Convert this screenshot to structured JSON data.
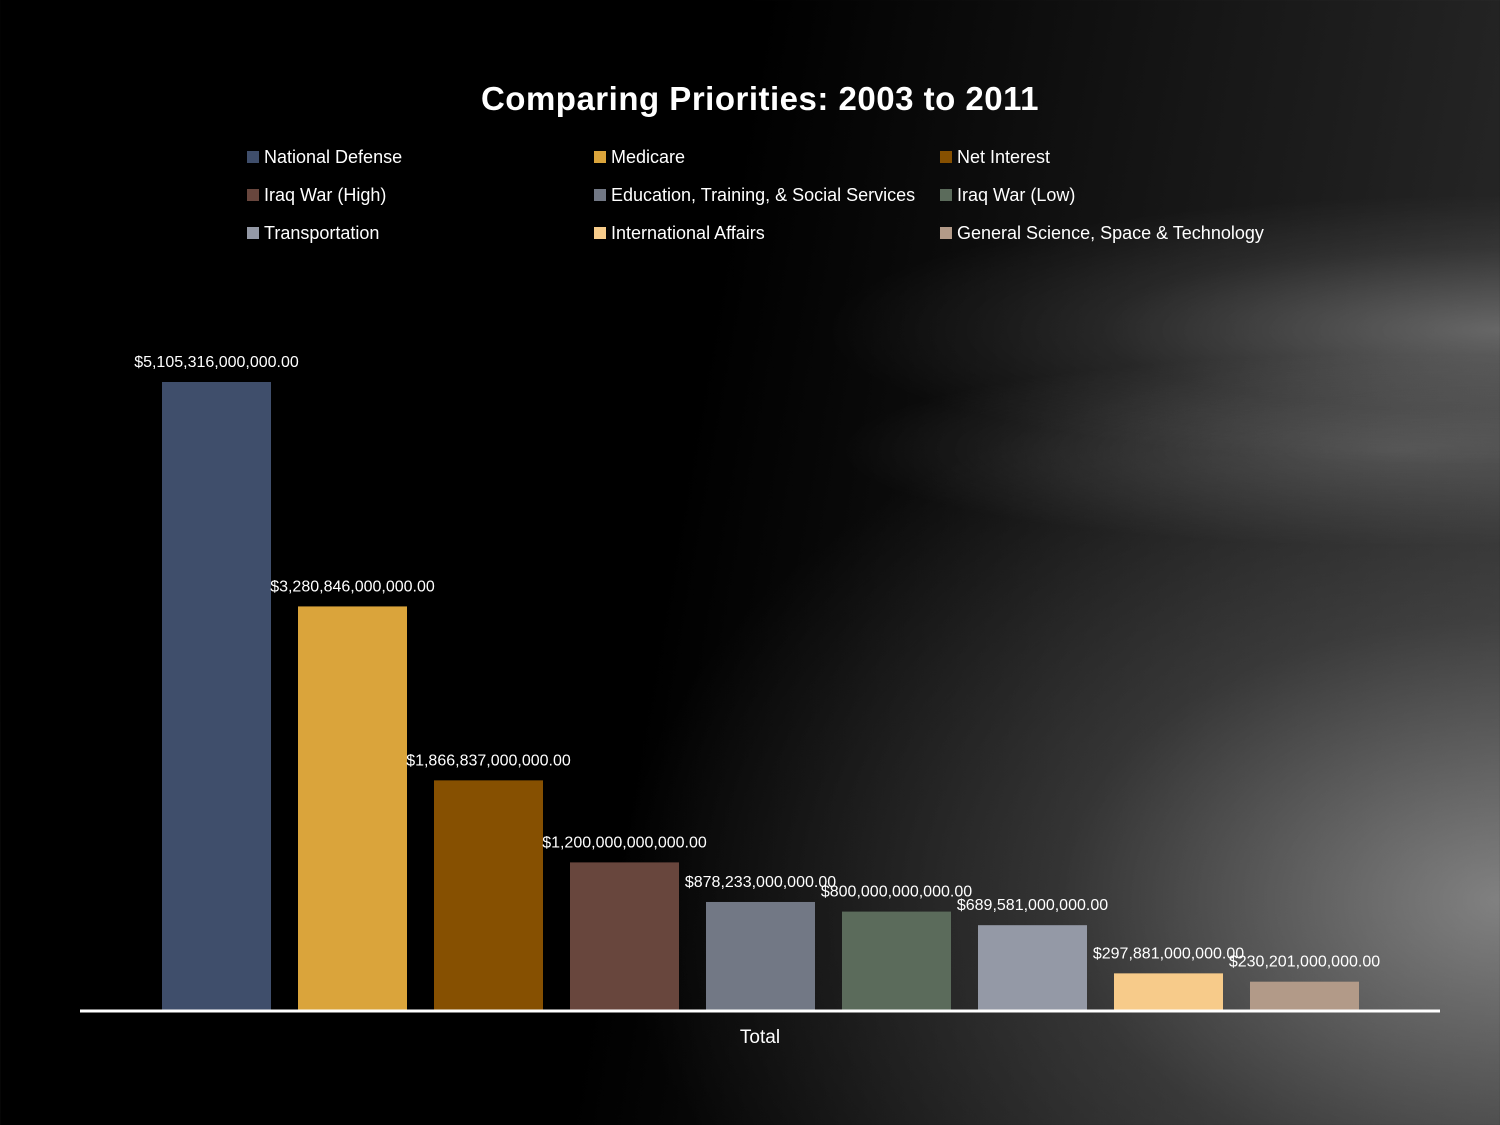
{
  "chart_data": {
    "type": "bar",
    "title": "Comparing Priorities: 2003 to 2011",
    "categories": [
      "Total"
    ],
    "series": [
      {
        "name": "National Defense",
        "values": [
          5105316000000
        ],
        "label": "$5,105,316,000,000.00",
        "color": "#3f4e6b"
      },
      {
        "name": "Medicare",
        "values": [
          3280846000000
        ],
        "label": "$3,280,846,000,000.00",
        "color": "#daa43b"
      },
      {
        "name": "Net Interest",
        "values": [
          1866837000000
        ],
        "label": "$1,866,837,000,000.00",
        "color": "#865001"
      },
      {
        "name": "Iraq War (High)",
        "values": [
          1200000000000
        ],
        "label": "$1,200,000,000,000.00",
        "color": "#68463d"
      },
      {
        "name": "Education, Training, & Social Services",
        "values": [
          878233000000
        ],
        "label": "$878,233,000,000.00",
        "color": "#727885"
      },
      {
        "name": "Iraq War (Low)",
        "values": [
          800000000000
        ],
        "label": "$800,000,000,000.00",
        "color": "#5b6b5b"
      },
      {
        "name": "Transportation",
        "values": [
          689581000000
        ],
        "label": "$689,581,000,000.00",
        "color": "#9499a6"
      },
      {
        "name": "International Affairs",
        "values": [
          297881000000
        ],
        "label": "$297,881,000,000.00",
        "color": "#f7cb8a"
      },
      {
        "name": "General Science, Space & Technology",
        "values": [
          230201000000
        ],
        "label": "$230,201,000,000.00",
        "color": "#b29a88"
      }
    ],
    "xlabel": "",
    "ylabel": "",
    "ylim": [
      0,
      5105316000000
    ],
    "grid": false,
    "legend_position": "top",
    "axis_color": "#ffffff"
  }
}
